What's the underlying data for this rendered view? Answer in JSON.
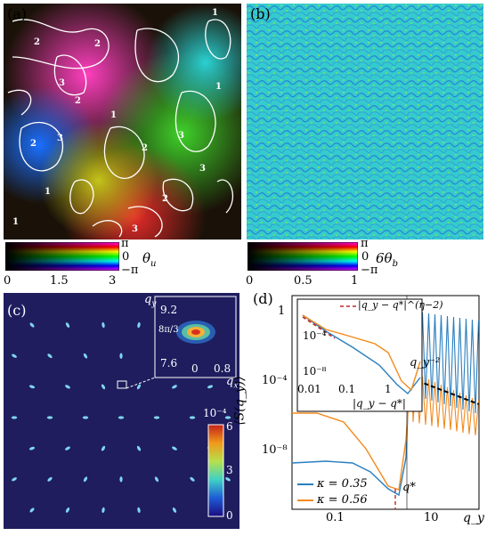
{
  "panel_a": {
    "letter": "(a)",
    "contour_labels": [
      "1",
      "2",
      "2",
      "3",
      "2",
      "3",
      "2",
      "3",
      "1",
      "1",
      "2",
      "3",
      "2",
      "1",
      "3",
      "1"
    ],
    "colorbar": {
      "top_label": "π",
      "mid_label": "0",
      "bottom_label": "−π",
      "symbol": "θ",
      "subscript": "u",
      "ticks": [
        "0",
        "1.5",
        "3"
      ]
    }
  },
  "panel_b": {
    "letter": "(b)",
    "colorbar": {
      "top_label": "π",
      "mid_label": "0",
      "bottom_label": "−π",
      "symbol": "6θ",
      "subscript": "b",
      "ticks": [
        "0",
        "0.5",
        "1"
      ]
    }
  },
  "panel_c": {
    "letter": "(c)",
    "inset": {
      "ylabel": "q",
      "ylabel_sub": "y",
      "xlabel": "q",
      "xlabel_sub": "x",
      "yticks": [
        "9.2",
        "8π/3",
        "7.6"
      ],
      "xticks": [
        "0",
        "0.8"
      ]
    },
    "colorbar": {
      "exponent": "10⁻⁴",
      "ticks": [
        "6",
        "3",
        "0"
      ]
    }
  },
  "panel_d": {
    "letter": "(d)",
    "ylabel": "⟨S(q_y)⟩",
    "xlabel": "q_y",
    "yticks": [
      "1",
      "10⁻⁴",
      "10⁻⁸"
    ],
    "xticks": [
      "0.1",
      "10"
    ],
    "annotation_qmin2": "q_y⁻²",
    "annotation_qstar": "q*",
    "inset": {
      "legend": "|q_y − q*|^(η−2)",
      "yticks": [
        "10⁻⁴",
        "10⁻⁸"
      ],
      "xticks": [
        "0.01",
        "0.1",
        "1"
      ],
      "xlabel": "|q_y − q*|"
    },
    "legend": [
      {
        "label": "κ = 0.35",
        "color": "#2a7fbf"
      },
      {
        "label": "κ = 0.56",
        "color": "#f28a1e"
      }
    ]
  },
  "chart_data": {
    "type": "line",
    "xlabel": "q_y",
    "ylabel": "⟨S(q_y)⟩",
    "log_x": true,
    "log_y": true,
    "series": [
      {
        "name": "κ = 0.35",
        "x": [
          0.03,
          0.1,
          0.3,
          1,
          3,
          6,
          8,
          10,
          12
        ],
        "y": [
          1e-08,
          2e-08,
          1e-08,
          1e-09,
          1e-10,
          1e-09,
          1e-06,
          0.001,
          1e-05
        ]
      },
      {
        "name": "κ = 0.56",
        "x": [
          0.03,
          0.1,
          0.3,
          1,
          3,
          6,
          8,
          10,
          12
        ],
        "y": [
          1e-05,
          1e-05,
          1e-06,
          1e-08,
          1e-10,
          1e-09,
          1e-06,
          0.001,
          1e-05
        ]
      }
    ]
  }
}
